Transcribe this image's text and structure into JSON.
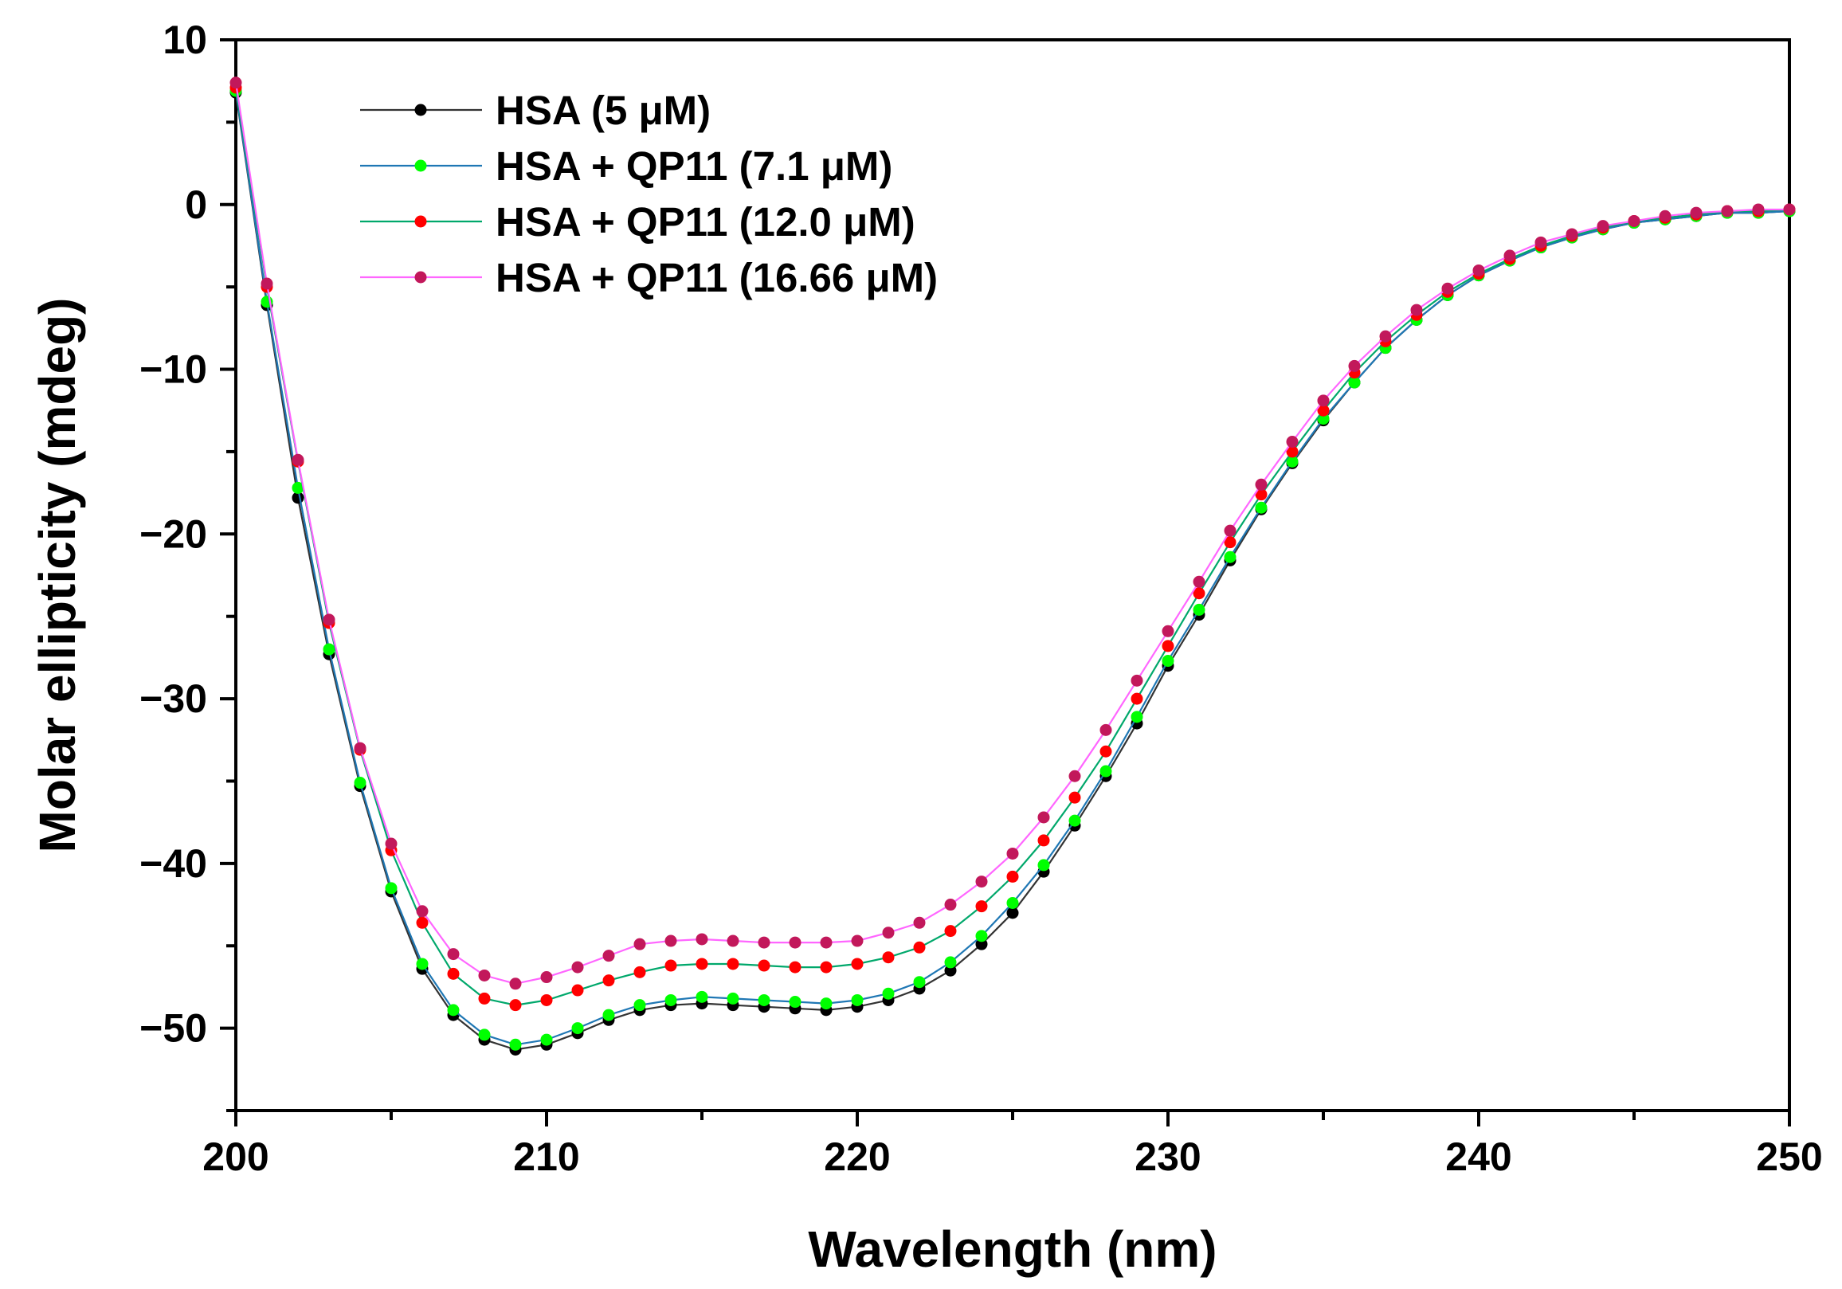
{
  "chart_data": {
    "type": "line",
    "title": "",
    "xlabel": "Wavelength (nm)",
    "ylabel": "Molar ellipticity (mdeg)",
    "xlim": [
      200,
      250
    ],
    "ylim": [
      -55,
      10
    ],
    "xticks": [
      200,
      210,
      220,
      230,
      240,
      250
    ],
    "yticks": [
      10,
      0,
      -10,
      -20,
      -30,
      -40,
      -50
    ],
    "xtick_labels": [
      "200",
      "210",
      "220",
      "230",
      "240",
      "250"
    ],
    "ytick_labels": [
      "10",
      "0",
      "−10",
      "−20",
      "−30",
      "−40",
      "−50"
    ],
    "grid": false,
    "legend_position": "top-left",
    "x": [
      200,
      201,
      202,
      203,
      204,
      205,
      206,
      207,
      208,
      209,
      210,
      211,
      212,
      213,
      214,
      215,
      216,
      217,
      218,
      219,
      220,
      221,
      222,
      223,
      224,
      225,
      226,
      227,
      228,
      229,
      230,
      231,
      232,
      233,
      234,
      235,
      236,
      237,
      238,
      239,
      240,
      241,
      242,
      243,
      244,
      245,
      246,
      247,
      248,
      249,
      250
    ],
    "series": [
      {
        "name": "HSA (5 μM)",
        "line_color": "#333333",
        "marker_color": "#000000",
        "values": [
          6.8,
          -6.1,
          -17.8,
          -27.3,
          -35.3,
          -41.7,
          -46.4,
          -49.2,
          -50.7,
          -51.3,
          -51.0,
          -50.3,
          -49.5,
          -48.9,
          -48.6,
          -48.5,
          -48.6,
          -48.7,
          -48.8,
          -48.9,
          -48.7,
          -48.3,
          -47.6,
          -46.5,
          -44.9,
          -43.0,
          -40.5,
          -37.7,
          -34.7,
          -31.5,
          -28.0,
          -24.9,
          -21.6,
          -18.5,
          -15.7,
          -13.1,
          -10.8,
          -8.7,
          -7.0,
          -5.5,
          -4.3,
          -3.4,
          -2.6,
          -2.0,
          -1.5,
          -1.1,
          -0.9,
          -0.7,
          -0.5,
          -0.5,
          -0.4
        ]
      },
      {
        "name": "HSA + QP11 (7.1 μM)",
        "line_color": "#1f77b4",
        "marker_color": "#00ff00",
        "values": [
          6.9,
          -5.9,
          -17.2,
          -27.0,
          -35.1,
          -41.5,
          -46.1,
          -48.9,
          -50.4,
          -51.0,
          -50.7,
          -50.0,
          -49.2,
          -48.6,
          -48.3,
          -48.1,
          -48.2,
          -48.3,
          -48.4,
          -48.5,
          -48.3,
          -47.9,
          -47.2,
          -46.0,
          -44.4,
          -42.4,
          -40.1,
          -37.4,
          -34.4,
          -31.1,
          -27.7,
          -24.6,
          -21.4,
          -18.4,
          -15.6,
          -13.0,
          -10.8,
          -8.7,
          -7.0,
          -5.5,
          -4.3,
          -3.4,
          -2.6,
          -2.0,
          -1.5,
          -1.1,
          -0.9,
          -0.7,
          -0.5,
          -0.5,
          -0.4
        ]
      },
      {
        "name": "HSA + QP11 (12.0 μM)",
        "line_color": "#00a86b",
        "marker_color": "#ff0000",
        "values": [
          7.1,
          -5.0,
          -15.6,
          -25.4,
          -33.1,
          -39.2,
          -43.6,
          -46.7,
          -48.2,
          -48.6,
          -48.3,
          -47.7,
          -47.1,
          -46.6,
          -46.2,
          -46.1,
          -46.1,
          -46.2,
          -46.3,
          -46.3,
          -46.1,
          -45.7,
          -45.1,
          -44.1,
          -42.6,
          -40.8,
          -38.6,
          -36.0,
          -33.2,
          -30.0,
          -26.8,
          -23.6,
          -20.5,
          -17.6,
          -15.0,
          -12.5,
          -10.2,
          -8.3,
          -6.7,
          -5.3,
          -4.2,
          -3.3,
          -2.5,
          -1.9,
          -1.4,
          -1.0,
          -0.8,
          -0.6,
          -0.4,
          -0.4,
          -0.3
        ]
      },
      {
        "name": "HSA + QP11 (16.66 μM)",
        "line_color": "#ff66ff",
        "marker_color": "#c2185b",
        "values": [
          7.4,
          -4.8,
          -15.5,
          -25.2,
          -33.0,
          -38.8,
          -42.9,
          -45.5,
          -46.8,
          -47.3,
          -46.9,
          -46.3,
          -45.6,
          -44.9,
          -44.7,
          -44.6,
          -44.7,
          -44.8,
          -44.8,
          -44.8,
          -44.7,
          -44.2,
          -43.6,
          -42.5,
          -41.1,
          -39.4,
          -37.2,
          -34.7,
          -31.9,
          -28.9,
          -25.9,
          -22.9,
          -19.8,
          -17.0,
          -14.4,
          -11.9,
          -9.8,
          -8.0,
          -6.4,
          -5.1,
          -4.0,
          -3.1,
          -2.3,
          -1.8,
          -1.3,
          -1.0,
          -0.7,
          -0.5,
          -0.4,
          -0.3,
          -0.3
        ]
      }
    ]
  }
}
